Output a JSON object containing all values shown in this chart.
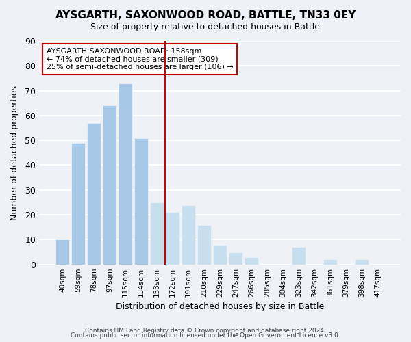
{
  "title_line1": "AYSGARTH, SAXONWOOD ROAD, BATTLE, TN33 0EY",
  "title_line2": "Size of property relative to detached houses in Battle",
  "xlabel": "Distribution of detached houses by size in Battle",
  "ylabel": "Number of detached properties",
  "bar_labels": [
    "40sqm",
    "59sqm",
    "78sqm",
    "97sqm",
    "115sqm",
    "134sqm",
    "153sqm",
    "172sqm",
    "191sqm",
    "210sqm",
    "229sqm",
    "247sqm",
    "266sqm",
    "285sqm",
    "304sqm",
    "323sqm",
    "342sqm",
    "361sqm",
    "379sqm",
    "398sqm",
    "417sqm"
  ],
  "bar_values": [
    10,
    49,
    57,
    64,
    73,
    51,
    25,
    21,
    24,
    16,
    8,
    5,
    3,
    0,
    0,
    7,
    0,
    2,
    0,
    2,
    0
  ],
  "bar_color_left": "#a8c8e8",
  "bar_color_right": "#c8dff0",
  "property_line_x": 6.5,
  "annotation_line1": "AYSGARTH SAXONWOOD ROAD: 158sqm",
  "annotation_line2": "← 74% of detached houses are smaller (309)",
  "annotation_line3": "25% of semi-detached houses are larger (106) →",
  "vline_color": "#cc0000",
  "annotation_box_color": "#ffffff",
  "annotation_box_edge": "#cc0000",
  "ylim": [
    0,
    90
  ],
  "yticks": [
    0,
    10,
    20,
    30,
    40,
    50,
    60,
    70,
    80,
    90
  ],
  "background_color": "#eef2f7",
  "grid_color": "#ffffff",
  "footnote1": "Contains HM Land Registry data © Crown copyright and database right 2024.",
  "footnote2": "Contains public sector information licensed under the Open Government Licence v3.0."
}
